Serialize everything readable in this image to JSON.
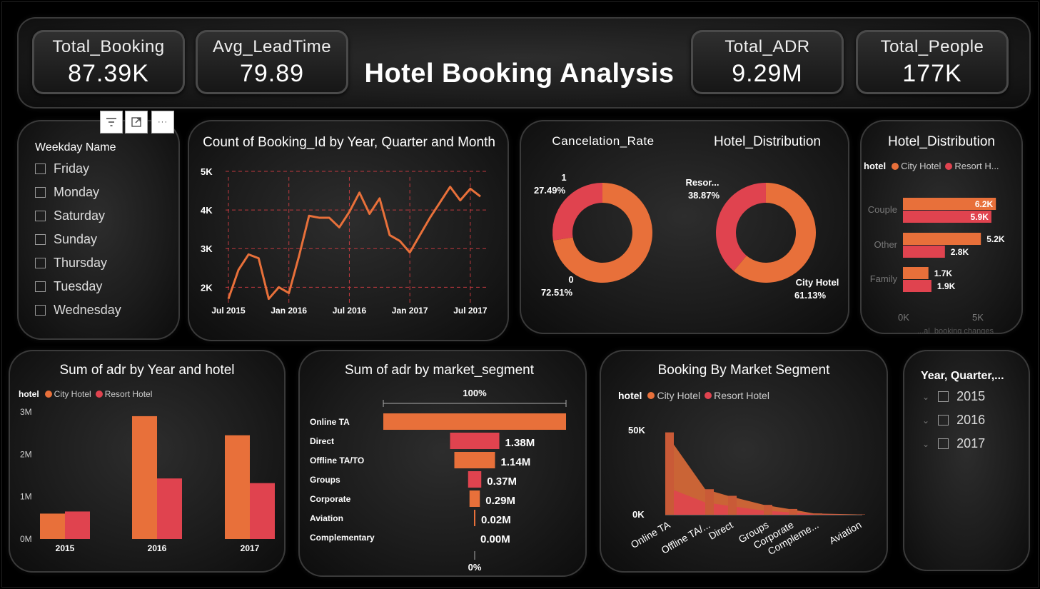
{
  "header": {
    "title": "Hotel Booking Analysis",
    "kpis": [
      {
        "label": "Total_Booking",
        "value": "87.39K"
      },
      {
        "label": "Avg_LeadTime",
        "value": "79.89"
      },
      {
        "label": "Total_ADR",
        "value": "9.29M"
      },
      {
        "label": "Total_People",
        "value": "177K"
      }
    ]
  },
  "colors": {
    "city": "#e8703a",
    "resort": "#e0434f"
  },
  "toolbar": {
    "filter_icon": "filter-icon",
    "focus_icon": "focus-mode-icon",
    "more_icon": "more-options-icon"
  },
  "weekday_slicer": {
    "title": "Weekday Name",
    "items": [
      "Friday",
      "Monday",
      "Saturday",
      "Sunday",
      "Thursday",
      "Tuesday",
      "Wednesday"
    ]
  },
  "year_slicer": {
    "title": "Year, Quarter,...",
    "items": [
      "2015",
      "2016",
      "2017"
    ]
  },
  "chart_data": [
    {
      "type": "line",
      "title": "Count of Booking_Id by Year, Quarter and Month",
      "x": [
        "Jul 2015",
        "Aug 2015",
        "Sep 2015",
        "Oct 2015",
        "Nov 2015",
        "Dec 2015",
        "Jan 2016",
        "Feb 2016",
        "Mar 2016",
        "Apr 2016",
        "May 2016",
        "Jun 2016",
        "Jul 2016",
        "Aug 2016",
        "Sep 2016",
        "Oct 2016",
        "Nov 2016",
        "Dec 2016",
        "Jan 2017",
        "Feb 2017",
        "Mar 2017",
        "Apr 2017",
        "May 2017",
        "Jun 2017",
        "Jul 2017",
        "Aug 2017"
      ],
      "values": [
        1700,
        2450,
        2850,
        2750,
        1700,
        2000,
        1850,
        2800,
        3850,
        3800,
        3800,
        3550,
        3950,
        4450,
        3900,
        4300,
        3350,
        3200,
        2900,
        3350,
        3800,
        4200,
        4600,
        4250,
        4550,
        4350
      ],
      "x_ticks": [
        "Jul 2015",
        "Jan 2016",
        "Jul 2016",
        "Jan 2017",
        "Jul 2017"
      ],
      "y_ticks": [
        "2K",
        "3K",
        "4K",
        "5K"
      ],
      "ylim": [
        1600,
        5000
      ]
    },
    {
      "type": "pie",
      "title": "Cancelation_Rate",
      "slices": [
        {
          "label": "0",
          "pct_label": "72.51%",
          "value": 72.51
        },
        {
          "label": "1",
          "pct_label": "27.49%",
          "value": 27.49
        }
      ]
    },
    {
      "type": "pie",
      "title": "Hotel_Distribution",
      "slices": [
        {
          "label": "City Hotel",
          "pct_label": "61.13%",
          "value": 61.13
        },
        {
          "label": "Resor...",
          "pct_label": "38.87%",
          "value": 38.87
        }
      ]
    },
    {
      "type": "bar",
      "title": "Hotel_Distribution",
      "legend_title": "hotel",
      "series_names": [
        "City Hotel",
        "Resort H..."
      ],
      "categories": [
        "Couple",
        "Other",
        "Family"
      ],
      "series": [
        {
          "name": "City Hotel",
          "values": [
            6200,
            5200,
            1700
          ],
          "labels": [
            "6.2K",
            "5.2K",
            "1.7K"
          ]
        },
        {
          "name": "Resort Hotel",
          "values": [
            5900,
            2800,
            1900
          ],
          "labels": [
            "5.9K",
            "2.8K",
            "1.9K"
          ]
        }
      ],
      "x_ticks": [
        "0K",
        "5K"
      ],
      "footnote": "...al_booking changes"
    },
    {
      "type": "bar",
      "title": "Sum of adr by Year and hotel",
      "legend_title": "hotel",
      "categories": [
        "2015",
        "2016",
        "2017"
      ],
      "series": [
        {
          "name": "City Hotel",
          "values": [
            600000,
            2900000,
            2450000
          ]
        },
        {
          "name": "Resort Hotel",
          "values": [
            650000,
            1430000,
            1320000
          ]
        }
      ],
      "y_ticks": [
        "0M",
        "1M",
        "2M",
        "3M"
      ],
      "ylim": [
        0,
        3000000
      ]
    },
    {
      "type": "bar",
      "title": "Sum of adr by market_segment",
      "top_label": "100%",
      "bottom_label": "0%",
      "categories": [
        "Online TA",
        "Direct",
        "Offline TA/TO",
        "Groups",
        "Corporate",
        "Aviation",
        "Complementary"
      ],
      "values": [
        5120000,
        1380000,
        1140000,
        370000,
        290000,
        20000,
        0
      ],
      "labels": [
        "",
        "1.38M",
        "1.14M",
        "0.37M",
        "0.29M",
        "0.02M",
        "0.00M"
      ]
    },
    {
      "type": "area",
      "title": "Booking By Market Segment",
      "legend_title": "hotel",
      "categories": [
        "Online TA",
        "Offline TA/...",
        "Direct",
        "Groups",
        "Corporate",
        "Compleme...",
        "Aviation"
      ],
      "series": [
        {
          "name": "City Hotel",
          "values": [
            33000,
            8000,
            6000,
            3500,
            2000,
            500,
            200
          ]
        },
        {
          "name": "Resort Hotel",
          "values": [
            17000,
            7500,
            5500,
            2500,
            1500,
            300,
            0
          ]
        }
      ],
      "y_ticks": [
        "0K",
        "50K"
      ],
      "ylim": [
        0,
        52000
      ]
    }
  ]
}
